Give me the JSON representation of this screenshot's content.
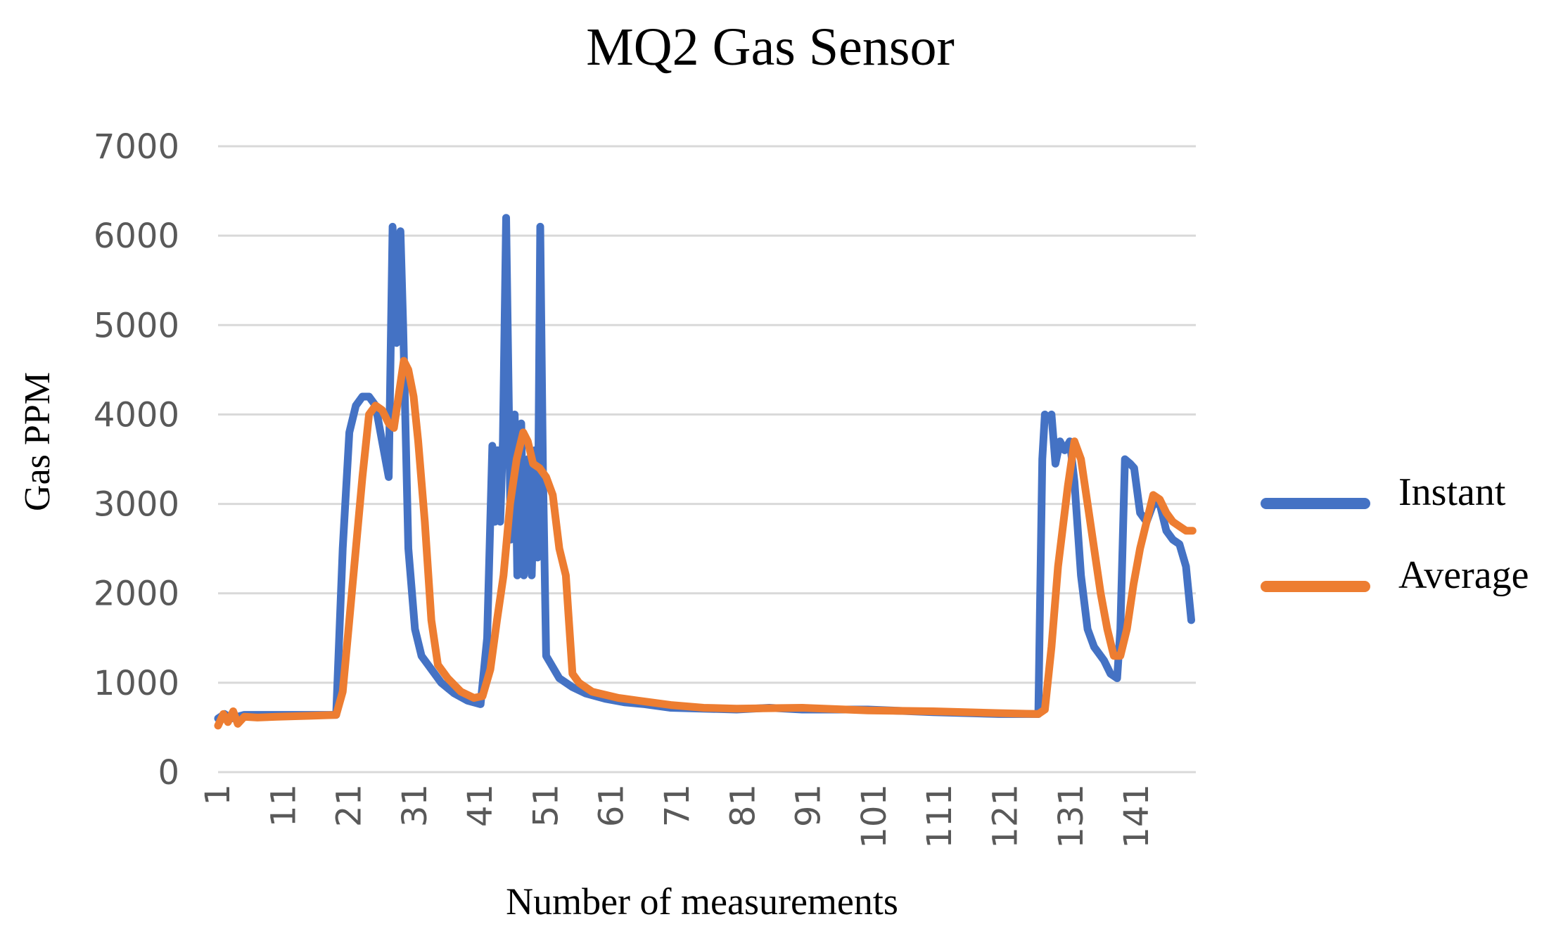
{
  "chart_data": {
    "type": "line",
    "title": "MQ2 Gas Sensor",
    "xlabel": "Number of measurements",
    "ylabel": "Gas PPM",
    "ylim": [
      0,
      7000
    ],
    "xlim": [
      1,
      150
    ],
    "yticks": [
      "0",
      "1000",
      "2000",
      "3000",
      "4000",
      "5000",
      "6000",
      "7000"
    ],
    "xticks": [
      "1",
      "11",
      "21",
      "31",
      "41",
      "51",
      "61",
      "71",
      "81",
      "91",
      "101",
      "111",
      "121",
      "131",
      "141"
    ],
    "grid": true,
    "legend_position": "right",
    "series": [
      {
        "name": "Instant",
        "color": "#4472C4",
        "points": [
          [
            1,
            600
          ],
          [
            2,
            650
          ],
          [
            3,
            600
          ],
          [
            5,
            640
          ],
          [
            10,
            640
          ],
          [
            15,
            640
          ],
          [
            19,
            640
          ],
          [
            20,
            2500
          ],
          [
            21,
            3800
          ],
          [
            22,
            4100
          ],
          [
            23,
            4200
          ],
          [
            24,
            4200
          ],
          [
            25,
            4100
          ],
          [
            26,
            3700
          ],
          [
            27,
            3300
          ],
          [
            27.6,
            6100
          ],
          [
            28.2,
            4800
          ],
          [
            28.8,
            6050
          ],
          [
            29.2,
            5000
          ],
          [
            30,
            2500
          ],
          [
            31,
            1600
          ],
          [
            32,
            1300
          ],
          [
            33,
            1200
          ],
          [
            35,
            1000
          ],
          [
            37,
            880
          ],
          [
            39,
            800
          ],
          [
            41,
            760
          ],
          [
            42,
            1500
          ],
          [
            42.8,
            3650
          ],
          [
            43.2,
            2800
          ],
          [
            43.6,
            3600
          ],
          [
            44,
            2800
          ],
          [
            44.4,
            3700
          ],
          [
            44.9,
            6200
          ],
          [
            45.6,
            2600
          ],
          [
            46.2,
            4000
          ],
          [
            46.6,
            2200
          ],
          [
            47.2,
            3900
          ],
          [
            47.6,
            2200
          ],
          [
            48.2,
            3500
          ],
          [
            48.8,
            2200
          ],
          [
            49.3,
            3600
          ],
          [
            49.7,
            2400
          ],
          [
            50.1,
            6100
          ],
          [
            50.5,
            3400
          ],
          [
            51,
            1300
          ],
          [
            53,
            1050
          ],
          [
            55,
            950
          ],
          [
            57,
            880
          ],
          [
            60,
            820
          ],
          [
            63,
            780
          ],
          [
            66,
            760
          ],
          [
            70,
            720
          ],
          [
            80,
            700
          ],
          [
            85,
            720
          ],
          [
            90,
            700
          ],
          [
            100,
            700
          ],
          [
            110,
            670
          ],
          [
            120,
            650
          ],
          [
            126,
            650
          ],
          [
            126.6,
            3500
          ],
          [
            127,
            4000
          ],
          [
            127.5,
            3950
          ],
          [
            128,
            4000
          ],
          [
            128.6,
            3450
          ],
          [
            129.3,
            3700
          ],
          [
            130,
            3600
          ],
          [
            130.8,
            3700
          ],
          [
            131.5,
            3250
          ],
          [
            132.5,
            2200
          ],
          [
            133.5,
            1600
          ],
          [
            134.5,
            1400
          ],
          [
            136,
            1250
          ],
          [
            137,
            1100
          ],
          [
            138,
            1050
          ],
          [
            138.5,
            1600
          ],
          [
            139.2,
            3500
          ],
          [
            140,
            3450
          ],
          [
            140.6,
            3400
          ],
          [
            141.5,
            2900
          ],
          [
            142.5,
            2800
          ],
          [
            143.5,
            3000
          ],
          [
            144.5,
            3000
          ],
          [
            145.5,
            2700
          ],
          [
            146.5,
            2600
          ],
          [
            147.5,
            2550
          ],
          [
            148.5,
            2300
          ],
          [
            149.3,
            1700
          ]
        ]
      },
      {
        "name": "Average",
        "color": "#ED7D31",
        "points": [
          [
            1,
            520
          ],
          [
            1.8,
            650
          ],
          [
            2.5,
            560
          ],
          [
            3.3,
            680
          ],
          [
            4,
            540
          ],
          [
            5,
            620
          ],
          [
            7,
            610
          ],
          [
            10,
            620
          ],
          [
            15,
            630
          ],
          [
            19,
            640
          ],
          [
            20,
            900
          ],
          [
            21,
            1700
          ],
          [
            22,
            2500
          ],
          [
            23,
            3300
          ],
          [
            24,
            4000
          ],
          [
            25,
            4100
          ],
          [
            26,
            4050
          ],
          [
            27,
            3900
          ],
          [
            27.8,
            3850
          ],
          [
            28.5,
            4200
          ],
          [
            29.3,
            4600
          ],
          [
            30,
            4500
          ],
          [
            30.8,
            4200
          ],
          [
            31.5,
            3700
          ],
          [
            32.5,
            2800
          ],
          [
            33.5,
            1700
          ],
          [
            34.5,
            1200
          ],
          [
            36,
            1050
          ],
          [
            38,
            900
          ],
          [
            40,
            830
          ],
          [
            41.3,
            850
          ],
          [
            42.5,
            1150
          ],
          [
            43.5,
            1700
          ],
          [
            44.5,
            2200
          ],
          [
            45.5,
            3000
          ],
          [
            46.5,
            3500
          ],
          [
            47.5,
            3800
          ],
          [
            48.2,
            3700
          ],
          [
            49,
            3450
          ],
          [
            50,
            3400
          ],
          [
            51,
            3300
          ],
          [
            52,
            3100
          ],
          [
            53,
            2500
          ],
          [
            54,
            2200
          ],
          [
            55,
            1100
          ],
          [
            56,
            1000
          ],
          [
            58,
            900
          ],
          [
            62,
            830
          ],
          [
            65,
            800
          ],
          [
            70,
            750
          ],
          [
            75,
            720
          ],
          [
            80,
            710
          ],
          [
            90,
            720
          ],
          [
            100,
            690
          ],
          [
            110,
            680
          ],
          [
            120,
            660
          ],
          [
            126,
            650
          ],
          [
            127,
            700
          ],
          [
            128,
            1400
          ],
          [
            129,
            2300
          ],
          [
            130.5,
            3200
          ],
          [
            131.5,
            3700
          ],
          [
            132.5,
            3500
          ],
          [
            133.5,
            3000
          ],
          [
            134.5,
            2500
          ],
          [
            135.5,
            2000
          ],
          [
            136.5,
            1600
          ],
          [
            137.5,
            1300
          ],
          [
            138.5,
            1300
          ],
          [
            139.5,
            1600
          ],
          [
            140.5,
            2100
          ],
          [
            141.5,
            2500
          ],
          [
            142.5,
            2800
          ],
          [
            143.5,
            3100
          ],
          [
            144.5,
            3050
          ],
          [
            145.5,
            2900
          ],
          [
            146.5,
            2800
          ],
          [
            147.5,
            2750
          ],
          [
            148.5,
            2700
          ],
          [
            149.5,
            2700
          ]
        ]
      }
    ]
  }
}
